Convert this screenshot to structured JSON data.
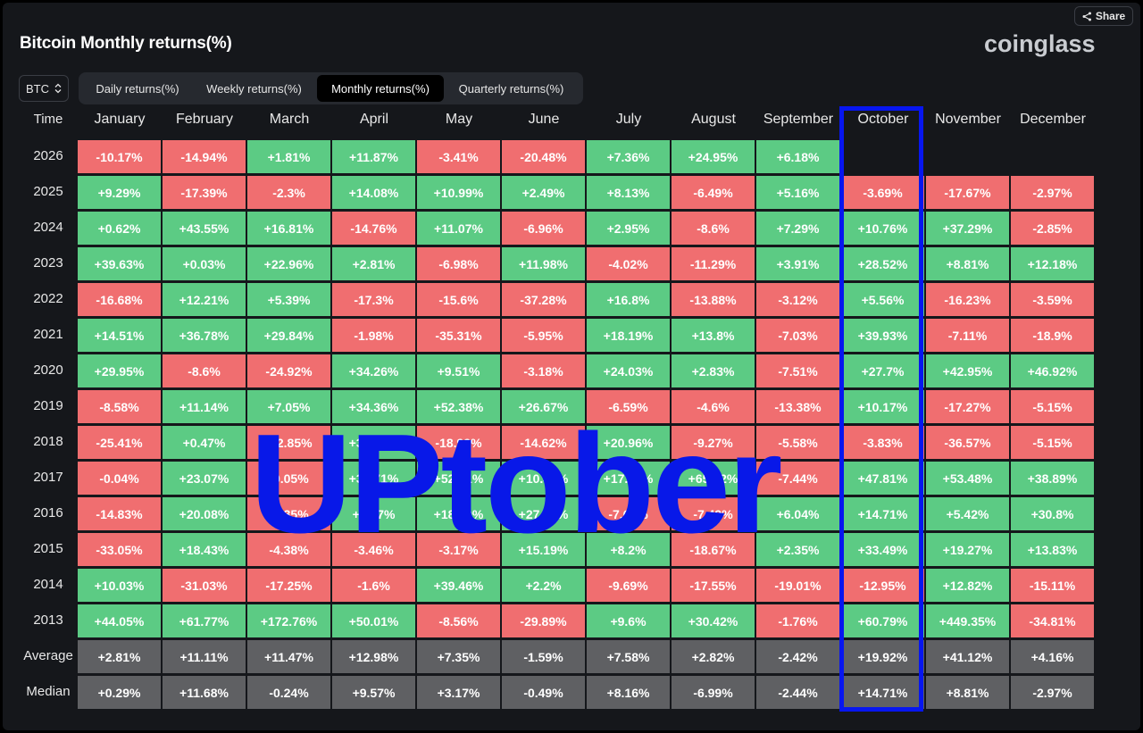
{
  "title": "Bitcoin Monthly returns(%)",
  "brand": "coinglass",
  "share_label": "Share",
  "coin_select": {
    "value": "BTC"
  },
  "tabs": [
    {
      "label": "Daily returns(%)",
      "active": false
    },
    {
      "label": "Weekly returns(%)",
      "active": false
    },
    {
      "label": "Monthly returns(%)",
      "active": true
    },
    {
      "label": "Quarterly returns(%)",
      "active": false
    }
  ],
  "table": {
    "time_header": "Time",
    "columns": [
      "January",
      "February",
      "March",
      "April",
      "May",
      "June",
      "July",
      "August",
      "September",
      "October",
      "November",
      "December"
    ],
    "rows": [
      {
        "label": "2026",
        "values": [
          "-10.17%",
          "-14.94%",
          "+1.81%",
          "+11.87%",
          "-3.41%",
          "-20.48%",
          "+7.36%",
          "+24.95%",
          "+6.18%",
          "",
          "",
          ""
        ]
      },
      {
        "label": "2025",
        "values": [
          "+9.29%",
          "-17.39%",
          "-2.3%",
          "+14.08%",
          "+10.99%",
          "+2.49%",
          "+8.13%",
          "-6.49%",
          "+5.16%",
          "-3.69%",
          "-17.67%",
          "-2.97%"
        ]
      },
      {
        "label": "2024",
        "values": [
          "+0.62%",
          "+43.55%",
          "+16.81%",
          "-14.76%",
          "+11.07%",
          "-6.96%",
          "+2.95%",
          "-8.6%",
          "+7.29%",
          "+10.76%",
          "+37.29%",
          "-2.85%"
        ]
      },
      {
        "label": "2023",
        "values": [
          "+39.63%",
          "+0.03%",
          "+22.96%",
          "+2.81%",
          "-6.98%",
          "+11.98%",
          "-4.02%",
          "-11.29%",
          "+3.91%",
          "+28.52%",
          "+8.81%",
          "+12.18%"
        ]
      },
      {
        "label": "2022",
        "values": [
          "-16.68%",
          "+12.21%",
          "+5.39%",
          "-17.3%",
          "-15.6%",
          "-37.28%",
          "+16.8%",
          "-13.88%",
          "-3.12%",
          "+5.56%",
          "-16.23%",
          "-3.59%"
        ]
      },
      {
        "label": "2021",
        "values": [
          "+14.51%",
          "+36.78%",
          "+29.84%",
          "-1.98%",
          "-35.31%",
          "-5.95%",
          "+18.19%",
          "+13.8%",
          "-7.03%",
          "+39.93%",
          "-7.11%",
          "-18.9%"
        ]
      },
      {
        "label": "2020",
        "values": [
          "+29.95%",
          "-8.6%",
          "-24.92%",
          "+34.26%",
          "+9.51%",
          "-3.18%",
          "+24.03%",
          "+2.83%",
          "-7.51%",
          "+27.7%",
          "+42.95%",
          "+46.92%"
        ]
      },
      {
        "label": "2019",
        "values": [
          "-8.58%",
          "+11.14%",
          "+7.05%",
          "+34.36%",
          "+52.38%",
          "+26.67%",
          "-6.59%",
          "-4.6%",
          "-13.38%",
          "+10.17%",
          "-17.27%",
          "-5.15%"
        ]
      },
      {
        "label": "2018",
        "values": [
          "-25.41%",
          "+0.47%",
          "-32.85%",
          "+33.43%",
          "-18.99%",
          "-14.62%",
          "+20.96%",
          "-9.27%",
          "-5.58%",
          "-3.83%",
          "-36.57%",
          "-5.15%"
        ]
      },
      {
        "label": "2017",
        "values": [
          "-0.04%",
          "+23.07%",
          "-9.05%",
          "+32.71%",
          "+52.71%",
          "+10.45%",
          "+17.92%",
          "+65.32%",
          "-7.44%",
          "+47.81%",
          "+53.48%",
          "+38.89%"
        ]
      },
      {
        "label": "2016",
        "values": [
          "-14.83%",
          "+20.08%",
          "-5.35%",
          "+7.27%",
          "+18.79%",
          "+27.14%",
          "-7.67%",
          "-7.49%",
          "+6.04%",
          "+14.71%",
          "+5.42%",
          "+30.8%"
        ]
      },
      {
        "label": "2015",
        "values": [
          "-33.05%",
          "+18.43%",
          "-4.38%",
          "-3.46%",
          "-3.17%",
          "+15.19%",
          "+8.2%",
          "-18.67%",
          "+2.35%",
          "+33.49%",
          "+19.27%",
          "+13.83%"
        ]
      },
      {
        "label": "2014",
        "values": [
          "+10.03%",
          "-31.03%",
          "-17.25%",
          "-1.6%",
          "+39.46%",
          "+2.2%",
          "-9.69%",
          "-17.55%",
          "-19.01%",
          "-12.95%",
          "+12.82%",
          "-15.11%"
        ]
      },
      {
        "label": "2013",
        "values": [
          "+44.05%",
          "+61.77%",
          "+172.76%",
          "+50.01%",
          "-8.56%",
          "-29.89%",
          "+9.6%",
          "+30.42%",
          "-1.76%",
          "+60.79%",
          "+449.35%",
          "-34.81%"
        ]
      }
    ],
    "stats": [
      {
        "label": "Average",
        "values": [
          "+2.81%",
          "+11.11%",
          "+11.47%",
          "+12.98%",
          "+7.35%",
          "-1.59%",
          "+7.58%",
          "+2.82%",
          "-2.42%",
          "+19.92%",
          "+41.12%",
          "+4.16%"
        ]
      },
      {
        "label": "Median",
        "values": [
          "+0.29%",
          "+11.68%",
          "-0.24%",
          "+9.57%",
          "+3.17%",
          "-0.49%",
          "+8.16%",
          "-6.99%",
          "-2.44%",
          "+14.71%",
          "+8.81%",
          "-2.97%"
        ]
      }
    ]
  },
  "overlay_text": "UPtober",
  "colors": {
    "positive": "#5ccb84",
    "negative": "#f06e70",
    "stat": "#5f6063",
    "highlight": "#0716ef"
  }
}
